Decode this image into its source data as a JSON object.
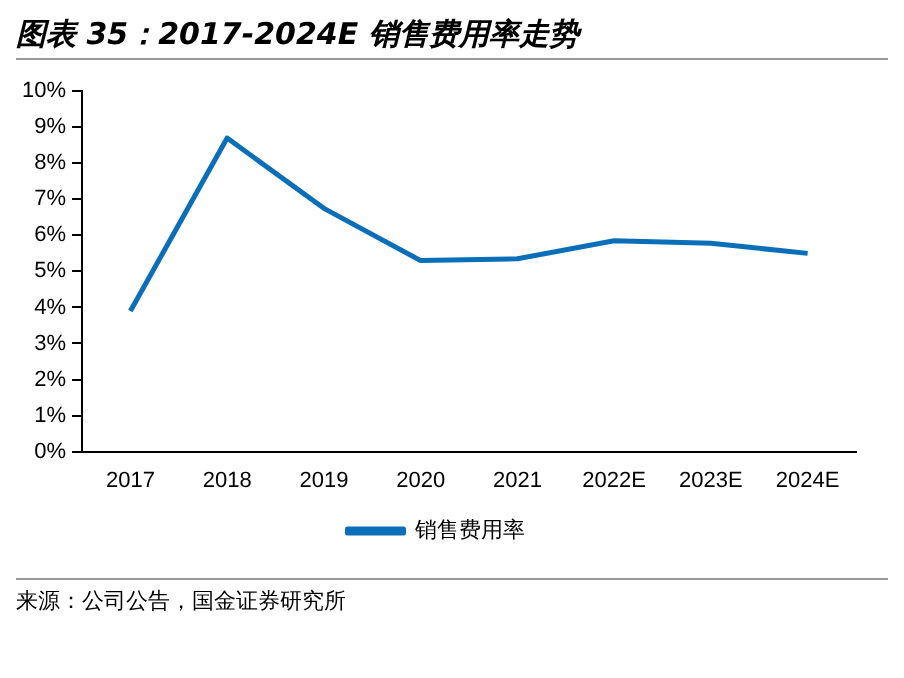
{
  "chart_data": {
    "type": "line",
    "title": "图表 35：2017-2024E 销售费用率走势",
    "categories": [
      "2017",
      "2018",
      "2019",
      "2020",
      "2021",
      "2022E",
      "2023E",
      "2024E"
    ],
    "series": [
      {
        "name": "销售费用率",
        "color": "#0a6fb8",
        "values": [
          3.9,
          8.7,
          6.75,
          5.3,
          5.35,
          5.85,
          5.78,
          5.5
        ]
      }
    ],
    "ylim": [
      0,
      10
    ],
    "yticks": [
      {
        "value": 0,
        "label": "0%"
      },
      {
        "value": 1,
        "label": "1%"
      },
      {
        "value": 2,
        "label": "2%"
      },
      {
        "value": 3,
        "label": "3%"
      },
      {
        "value": 4,
        "label": "4%"
      },
      {
        "value": 5,
        "label": "5%"
      },
      {
        "value": 6,
        "label": "6%"
      },
      {
        "value": 7,
        "label": "7%"
      },
      {
        "value": 8,
        "label": "8%"
      },
      {
        "value": 9,
        "label": "9%"
      },
      {
        "value": 10,
        "label": "10%"
      }
    ],
    "grid": false,
    "legend": "bottom",
    "marker": "none",
    "line_style": "solid",
    "annotations": [
      "来源：公司公告，国金证券研究所"
    ]
  }
}
